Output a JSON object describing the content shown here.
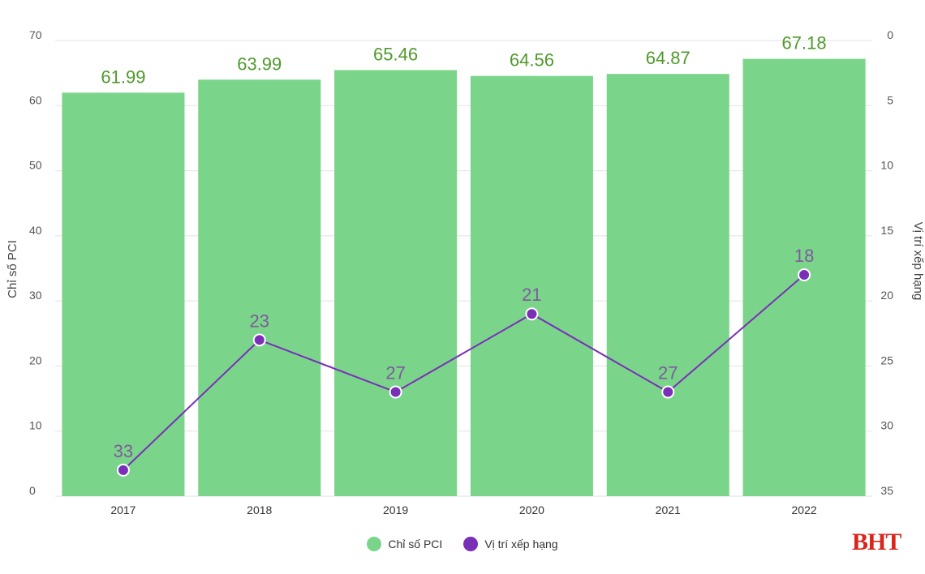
{
  "chart_data": {
    "type": "bar",
    "categories": [
      "2017",
      "2018",
      "2019",
      "2020",
      "2021",
      "2022"
    ],
    "series": [
      {
        "name": "Chỉ số PCI",
        "type": "bar",
        "axis": "left",
        "values": [
          61.99,
          63.99,
          65.46,
          64.56,
          64.87,
          67.18
        ],
        "labels": [
          "61.99",
          "63.99",
          "65.46",
          "64.56",
          "64.87",
          "67.18"
        ]
      },
      {
        "name": "Vị trí xếp hạng",
        "type": "line",
        "axis": "right",
        "values": [
          33,
          23,
          27,
          21,
          27,
          18
        ],
        "labels": [
          "33",
          "23",
          "27",
          "21",
          "27",
          "18"
        ]
      }
    ],
    "ylabel": "Chỉ số PCI",
    "y2label": "Vị trí xếp hạng",
    "ylim": [
      0,
      70
    ],
    "yticks": [
      "0",
      "10",
      "20",
      "30",
      "40",
      "50",
      "60",
      "70"
    ],
    "y2lim": [
      0,
      35
    ],
    "y2_reversed": true,
    "y2ticks": [
      "0",
      "5",
      "10",
      "15",
      "20",
      "25",
      "30",
      "35"
    ],
    "grid": true,
    "legend_position": "bottom"
  },
  "colors": {
    "bar": "#7ad58b",
    "bar_label": "#4f9a2c",
    "line": "#7a2fb7",
    "marker": "#7a2fb7",
    "rank_label": "#7f5a9c",
    "grid": "#e2e2e2",
    "logo": "#d9261c"
  },
  "legend": {
    "pci_label": "Chỉ số PCI",
    "rank_label": "Vị trí xếp hạng"
  },
  "logo": {
    "text": "BHT"
  }
}
